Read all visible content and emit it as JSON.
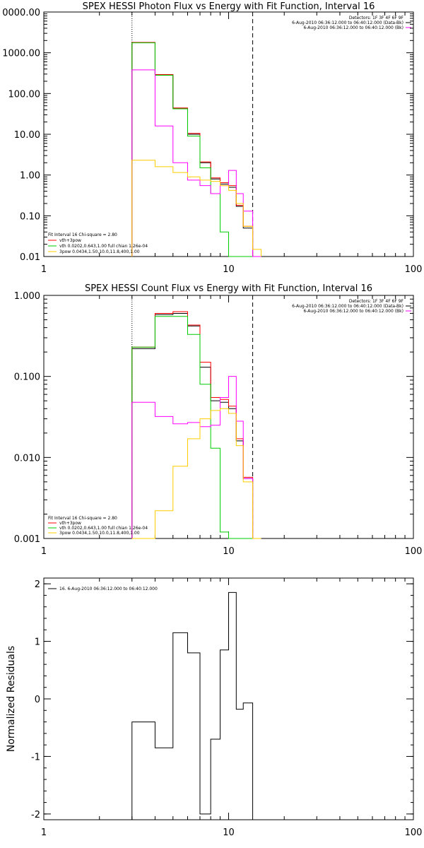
{
  "chart_data": [
    {
      "type": "line",
      "title": "SPEX HESSI Photon Flux vs Energy with Fit Function, Interval 16",
      "xlabel": "",
      "ylabel": "",
      "xscale": "log",
      "yscale": "log",
      "xlim": [
        1,
        100
      ],
      "ylim": [
        0.01,
        10000
      ],
      "xtick_labels": [
        "1",
        "10",
        "100"
      ],
      "ytick_labels": [
        "0.01",
        "0.10",
        "1.00",
        "10.00",
        "100.00",
        "1000.00",
        "0000.00"
      ],
      "vlines": [
        {
          "x": 3,
          "style": "dotted"
        },
        {
          "x": 13.5,
          "style": "dashed"
        }
      ],
      "x_edges": [
        3,
        4,
        5,
        6,
        7,
        8,
        9,
        10,
        11,
        12,
        13.5,
        15
      ],
      "series": [
        {
          "color": "#000000",
          "values": [
            1800,
            290,
            44,
            10,
            2.0,
            0.8,
            0.6,
            0.5,
            0.17,
            0.05,
            0.005
          ]
        },
        {
          "color": "#ff0000",
          "values": [
            1800,
            290,
            44,
            10.5,
            2.1,
            0.85,
            0.65,
            0.55,
            0.18,
            0.055,
            0.005
          ]
        },
        {
          "color": "#00cc00",
          "values": [
            1750,
            280,
            42,
            9.0,
            1.5,
            0.35,
            0.04,
            0.005,
            0.005,
            0.005,
            0.005
          ]
        },
        {
          "color": "#ff00ff",
          "values": [
            380,
            16,
            2.0,
            0.75,
            0.55,
            0.35,
            0.55,
            1.3,
            0.35,
            0.13,
            0.005
          ]
        },
        {
          "color": "#ffcc00",
          "values": [
            2.3,
            1.6,
            1.15,
            0.9,
            0.75,
            0.7,
            0.55,
            0.42,
            0.2,
            0.055,
            0.015
          ]
        }
      ],
      "header_lines": [
        "Detectors: 1F 3F 4F 6F 9F",
        "6-Aug-2010 06:36:12.000 to 06:40:12.000 (Data-Bk)",
        "6-Aug-2010 06:36:12.000 to 06:40:12.000 (Bk)"
      ],
      "legend_lines": [
        "Fit Interval 16    Chi-square = 2.80",
        "vth+3pow",
        "vth 0.0202,0.643,1.00  full chian 1.26e-04",
        "3pow 0.0434,1.50,10.0,11.8,400,1.00"
      ]
    },
    {
      "type": "line",
      "title": "SPEX HESSI Count Flux vs Energy with Fit Function, Interval 16",
      "xlabel": "",
      "ylabel": "",
      "xscale": "log",
      "yscale": "log",
      "xlim": [
        1,
        100
      ],
      "ylim": [
        0.001,
        1
      ],
      "xtick_labels": [
        "1",
        "10",
        "100"
      ],
      "ytick_labels": [
        "0.001",
        "0.010",
        "0.100",
        "1.000"
      ],
      "vlines": [
        {
          "x": 3,
          "style": "dotted"
        },
        {
          "x": 13.5,
          "style": "dashed"
        }
      ],
      "x_edges": [
        3,
        4,
        5,
        6,
        7,
        8,
        9,
        10,
        11,
        12,
        13.5,
        15
      ],
      "series": [
        {
          "color": "#000000",
          "values": [
            0.22,
            0.58,
            0.6,
            0.42,
            0.13,
            0.05,
            0.048,
            0.04,
            0.016,
            0.0055,
            0.0008
          ]
        },
        {
          "color": "#ff0000",
          "values": [
            0.23,
            0.6,
            0.63,
            0.43,
            0.15,
            0.055,
            0.052,
            0.043,
            0.017,
            0.0057,
            0.0008
          ]
        },
        {
          "color": "#00cc00",
          "values": [
            0.23,
            0.55,
            0.55,
            0.33,
            0.08,
            0.013,
            0.0012,
            0.0008,
            0.0008,
            0.0008,
            0.0008
          ]
        },
        {
          "color": "#ff00ff",
          "values": [
            0.048,
            0.032,
            0.026,
            0.027,
            0.024,
            0.025,
            0.055,
            0.1,
            0.028,
            0.0055,
            0.0008
          ]
        },
        {
          "color": "#ffcc00",
          "values": [
            0.0008,
            0.0022,
            0.0078,
            0.017,
            0.03,
            0.038,
            0.04,
            0.035,
            0.014,
            0.005,
            0.001
          ]
        }
      ],
      "header_lines": [
        "Detectors: 1F 3F 4F 6F 9F",
        "6-Aug-2010 06:36:12.000 to 06:40:12.000 (Data-Bk)",
        "6-Aug-2010 06:36:12.000 to 06:40:12.000 (Bk)"
      ],
      "legend_lines": [
        "Fit Interval 16    Chi-square = 2.80",
        "vth+3pow",
        "vth 0.0202,0.643,1.00  full chian 1.26e-04",
        "3pow 0.0434,1.50,10.0,11.8,400,1.00"
      ]
    },
    {
      "type": "line",
      "title": "",
      "xlabel": "",
      "ylabel": "Normalized Residuals",
      "xscale": "log",
      "yscale": "linear",
      "xlim": [
        1,
        100
      ],
      "ylim": [
        -2.1,
        2.1
      ],
      "xtick_labels": [
        "1",
        "10",
        "100"
      ],
      "ytick_labels": [
        "-2",
        "-1",
        "0",
        "1",
        "2"
      ],
      "x_edges": [
        3,
        4,
        5,
        6,
        7,
        8,
        9,
        10,
        11,
        12,
        13.5
      ],
      "series": [
        {
          "color": "#000000",
          "values": [
            -0.4,
            -0.85,
            1.15,
            0.8,
            -2.0,
            -0.7,
            0.85,
            1.85,
            -0.18,
            -0.07
          ]
        }
      ],
      "legend_lines": [
        "16.   6-Aug-2010 06:36:12.000 to 06:40:12.000"
      ]
    }
  ]
}
